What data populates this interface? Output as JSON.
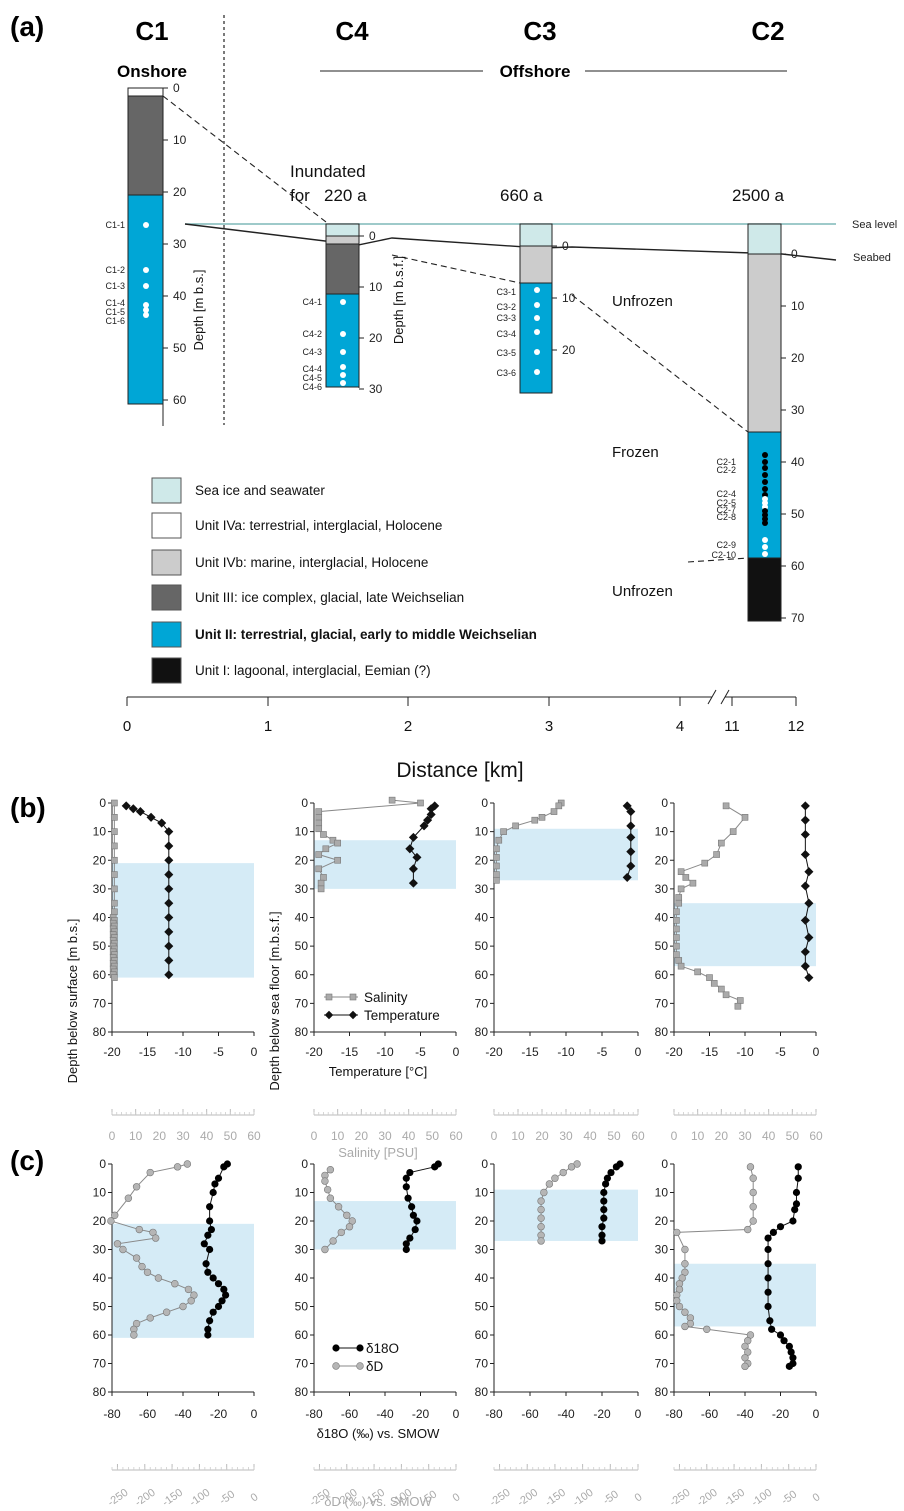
{
  "panel_labels": {
    "a": "(a)",
    "b": "(b)",
    "c": "(c)"
  },
  "colors": {
    "sea": "#cfe9e9",
    "unit_IVa": "#ffffff",
    "unit_IVb": "#cccccc",
    "unit_III": "#666666",
    "unit_II": "#00a6d6",
    "unit_I": "#111111",
    "unit_II_band": "#d5ebf6",
    "salinity": "#aaaaaa",
    "temperature": "#111111",
    "d18O": "#000000",
    "dD": "#b0b0b0"
  },
  "section": {
    "site_C1": "C1",
    "site_C4": "C4",
    "site_C3": "C3",
    "site_C2": "C2",
    "onshore": "Onshore",
    "offshore": "Offshore",
    "inundated_line1": "Inundated",
    "inundated_line2": "for",
    "age_C4": "220 a",
    "age_C3": "660 a",
    "age_C2": "2500 a",
    "sea_level": "Sea level",
    "seabed": "Seabed",
    "unfrozen_1": "Unfrozen",
    "frozen": "Frozen",
    "unfrozen_2": "Unfrozen",
    "depth_label_C1": "Depth [m b.s.]",
    "depth_label_C4": "Depth [m b.s.f.]",
    "distance_label": "Distance [km]",
    "distance_ticks": [
      "0",
      "1",
      "2",
      "3",
      "4",
      "11",
      "12"
    ],
    "depth_ticks_C1": [
      "0",
      "10",
      "20",
      "30",
      "40",
      "50",
      "60"
    ],
    "depth_ticks_C4": [
      "0",
      "10",
      "20",
      "30"
    ],
    "depth_ticks_C3": [
      "0",
      "10",
      "20"
    ],
    "depth_ticks_C2": [
      "0",
      "10",
      "20",
      "30",
      "40",
      "50",
      "60",
      "70"
    ],
    "samples_C1": [
      "C1-1",
      "C1-2",
      "C1-3",
      "C1-4",
      "C1-5",
      "C1-6"
    ],
    "samples_C4": [
      "C4-1",
      "C4-2",
      "C4-3",
      "C4-4",
      "C4-5",
      "C4-6"
    ],
    "samples_C3": [
      "C3-1",
      "C3-2",
      "C3-3",
      "C3-4",
      "C3-5",
      "C3-6"
    ],
    "samples_C2": [
      "C2-1",
      "C2-2",
      "C2-4",
      "C2-5",
      "C2-7",
      "C2-8",
      "C2-9",
      "C2-10"
    ],
    "legend": [
      {
        "label": "Sea ice and seawater",
        "color": "#cfe9e9"
      },
      {
        "label": "Unit IVa: terrestrial, interglacial, Holocene",
        "color": "#ffffff"
      },
      {
        "label": "Unit IVb: marine, interglacial, Holocene",
        "color": "#cccccc"
      },
      {
        "label": "Unit III: ice complex, glacial, late Weichselian",
        "color": "#666666"
      },
      {
        "label": "Unit II: terrestrial, glacial, early to middle Weichselian",
        "color": "#00a6d6"
      },
      {
        "label": "Unit I: lagoonal, interglacial, Eemian (?)",
        "color": "#111111"
      }
    ]
  },
  "profiles": {
    "ylabel_C1": "Depth below surface [m b.s.]",
    "ylabel_other": "Depth below sea floor [m.b.s.f.]",
    "y_ticks": [
      "0",
      "10",
      "20",
      "30",
      "40",
      "50",
      "60",
      "70",
      "80"
    ],
    "b_ticks": [
      "-20",
      "-15",
      "-10",
      "-5",
      "0"
    ],
    "b_sal_ticks": [
      "0",
      "10",
      "20",
      "30",
      "40",
      "50",
      "60"
    ],
    "c_ticks": [
      "-80",
      "-60",
      "-40",
      "-20",
      "0"
    ],
    "c_dD_ticks": [
      "-250",
      "-200",
      "-150",
      "-100",
      "-50",
      "0"
    ],
    "b_xlabel": "Temperature [°C]",
    "b_xlabel2": "Salinity [PSU]",
    "c_xlabel": "δ18O (‰) vs. SMOW",
    "c_xlabel2": "δD (‰) vs. SMOW",
    "legend_b": [
      "Salinity",
      "Temperature"
    ],
    "legend_c": [
      "δ18O",
      "δD"
    ]
  },
  "chart_data": [
    {
      "type": "line",
      "title": "",
      "panel": "(b) C1",
      "ylabel": "Depth below surface [m b.s.]",
      "xlabel": "Temperature [°C]",
      "xlabel2": "Salinity [PSU]",
      "xlim": [
        -20,
        0
      ],
      "xlim2": [
        0,
        60
      ],
      "ylim": [
        80,
        0
      ],
      "unit_II_band": [
        21,
        61
      ],
      "series": [
        {
          "name": "Temperature",
          "depth": [
            1,
            2,
            3,
            5,
            7,
            10,
            15,
            20,
            25,
            30,
            35,
            40,
            45,
            50,
            55,
            60
          ],
          "values": [
            -18,
            -17,
            -16,
            -14.5,
            -13,
            -12,
            -12,
            -12,
            -12,
            -12,
            -12,
            -12,
            -12,
            -12,
            -12,
            -12
          ]
        },
        {
          "name": "Salinity",
          "depth": [
            0,
            5,
            10,
            15,
            20,
            25,
            30,
            35,
            38,
            40,
            41,
            42,
            43,
            44,
            45,
            46,
            47,
            48,
            49,
            50,
            51,
            52,
            53,
            54,
            55,
            56,
            57,
            58,
            59,
            60,
            61
          ],
          "values": [
            1,
            1,
            1,
            1,
            1,
            1,
            1,
            1,
            1,
            0.5,
            1,
            0.5,
            1,
            0.5,
            1,
            0.5,
            1,
            0.5,
            1,
            0.5,
            1,
            0.5,
            1,
            0.5,
            1,
            0.5,
            1,
            0.5,
            1,
            0.5,
            1
          ]
        }
      ]
    },
    {
      "type": "line",
      "title": "",
      "panel": "(b) C4",
      "ylabel": "Depth below sea floor [m.b.s.f.]",
      "xlabel": "Temperature [°C]",
      "xlabel2": "Salinity [PSU]",
      "xlim": [
        -20,
        0
      ],
      "xlim2": [
        0,
        60
      ],
      "ylim": [
        80,
        0
      ],
      "unit_II_band": [
        13,
        30
      ],
      "series": [
        {
          "name": "Temperature",
          "depth": [
            1,
            2,
            4,
            6,
            8,
            12,
            16,
            19,
            23,
            28
          ],
          "values": [
            -3,
            -3.5,
            -3.5,
            -4,
            -4.5,
            -6,
            -6.5,
            -5.5,
            -6,
            -6
          ]
        },
        {
          "name": "Salinity",
          "depth": [
            -1,
            0,
            3,
            5,
            7,
            9,
            11,
            13,
            14,
            16,
            18,
            20,
            23,
            26,
            28,
            30
          ],
          "values": [
            33,
            45,
            2,
            2,
            2,
            2,
            4,
            8,
            10,
            5,
            2,
            10,
            2,
            4,
            3,
            3
          ]
        }
      ]
    },
    {
      "type": "line",
      "title": "",
      "panel": "(b) C3",
      "ylabel": "",
      "xlabel": "",
      "xlabel2": "",
      "xlim": [
        -20,
        0
      ],
      "xlim2": [
        0,
        60
      ],
      "ylim": [
        80,
        0
      ],
      "unit_II_band": [
        9,
        27
      ],
      "series": [
        {
          "name": "Temperature",
          "depth": [
            1,
            3,
            8,
            12,
            17,
            22,
            26
          ],
          "values": [
            -1.5,
            -1,
            -1,
            -1,
            -1,
            -1,
            -1.5
          ]
        },
        {
          "name": "Salinity",
          "depth": [
            0,
            1,
            3,
            5,
            6,
            8,
            10,
            13,
            16,
            19,
            22,
            25,
            27
          ],
          "values": [
            28,
            27,
            25,
            20,
            17,
            9,
            4,
            2,
            1,
            1,
            1,
            1,
            1
          ]
        }
      ]
    },
    {
      "type": "line",
      "title": "",
      "panel": "(b) C2",
      "ylabel": "",
      "xlabel": "",
      "xlabel2": "",
      "xlim": [
        -20,
        0
      ],
      "xlim2": [
        0,
        60
      ],
      "ylim": [
        80,
        0
      ],
      "unit_II_band": [
        35,
        57
      ],
      "series": [
        {
          "name": "Temperature",
          "depth": [
            1,
            6,
            11,
            18,
            24,
            29,
            35,
            41,
            47,
            52,
            57,
            61
          ],
          "values": [
            -1.5,
            -1.5,
            -1.5,
            -1.5,
            -1,
            -1.5,
            -1,
            -1.5,
            -1,
            -1.5,
            -1.5,
            -1
          ],
          "depth_note": ""
        },
        {
          "name": "Salinity",
          "depth": [
            1,
            5,
            10,
            14,
            18,
            21,
            24,
            26,
            28,
            30,
            33,
            35,
            38,
            41,
            44,
            47,
            50,
            53,
            55,
            57,
            59,
            61,
            63,
            65,
            67,
            69,
            71
          ],
          "values": [
            22,
            30,
            25,
            20,
            18,
            13,
            3,
            5,
            8,
            3,
            2,
            2,
            1,
            1,
            1,
            1,
            1,
            1,
            2,
            3,
            10,
            15,
            17,
            20,
            22,
            28,
            27
          ]
        }
      ]
    },
    {
      "type": "line",
      "title": "",
      "panel": "(c) C1",
      "ylabel": "Depth below surface [m b.s.]",
      "xlabel": "δ18O (‰) vs. SMOW",
      "xlabel2": "δD (‰) vs. SMOW",
      "xlim": [
        -80,
        0
      ],
      "xlim2": [
        -260,
        0
      ],
      "ylim": [
        80,
        0
      ],
      "unit_II_band": [
        21,
        61
      ],
      "series": [
        {
          "name": "δ18O",
          "depth": [
            0,
            1,
            5,
            7,
            10,
            15,
            20,
            23,
            25,
            28,
            30,
            35,
            38,
            40,
            42,
            44,
            46,
            48,
            50,
            52,
            55,
            58,
            60
          ],
          "values": [
            -15,
            -17,
            -20,
            -22,
            -23,
            -25,
            -25,
            -24,
            -26,
            -28,
            -25,
            -27,
            -26,
            -23,
            -20,
            -17,
            -16,
            -18,
            -20,
            -23,
            -25,
            -26,
            -26
          ]
        },
        {
          "name": "δD",
          "depth": [
            0,
            1,
            3,
            8,
            12,
            18,
            20,
            23,
            24,
            26,
            28,
            30,
            33,
            36,
            38,
            40,
            42,
            44,
            46,
            48,
            50,
            52,
            54,
            56,
            58,
            60
          ],
          "values": [
            -122,
            -140,
            -190,
            -215,
            -230,
            -255,
            -262,
            -210,
            -185,
            -180,
            -250,
            -240,
            -215,
            -205,
            -195,
            -175,
            -145,
            -120,
            -110,
            -115,
            -130,
            -160,
            -190,
            -215,
            -220,
            -220
          ]
        }
      ]
    },
    {
      "type": "line",
      "title": "",
      "panel": "(c) C4",
      "ylabel": "Depth below sea floor [m.b.s.f.]",
      "xlabel": "δ18O (‰) vs. SMOW",
      "xlabel2": "δD (‰) vs. SMOW",
      "xlim": [
        -80,
        0
      ],
      "xlim2": [
        -260,
        0
      ],
      "ylim": [
        80,
        0
      ],
      "unit_II_band": [
        13,
        30
      ],
      "series": [
        {
          "name": "δ18O",
          "depth": [
            0,
            1,
            3,
            5,
            8,
            12,
            15,
            18,
            20,
            23,
            26,
            28,
            30
          ],
          "values": [
            -10,
            -12,
            -26,
            -28,
            -28,
            -27,
            -25,
            -24,
            -22,
            -23,
            -26,
            -28,
            -28
          ]
        },
        {
          "name": "δD",
          "depth": [
            2,
            4,
            6,
            9,
            12,
            15,
            18,
            20,
            22,
            24,
            27,
            30
          ],
          "values": [
            -230,
            -240,
            -240,
            -235,
            -230,
            -215,
            -200,
            -190,
            -195,
            -210,
            -225,
            -240
          ]
        }
      ]
    },
    {
      "type": "line",
      "title": "",
      "panel": "(c) C3",
      "ylabel": "",
      "xlabel": "",
      "xlabel2": "",
      "xlim": [
        -80,
        0
      ],
      "xlim2": [
        -260,
        0
      ],
      "ylim": [
        80,
        0
      ],
      "unit_II_band": [
        9,
        27
      ],
      "series": [
        {
          "name": "δ18O",
          "depth": [
            0,
            1,
            3,
            5,
            7,
            10,
            13,
            16,
            19,
            22,
            25,
            27
          ],
          "values": [
            -10,
            -12,
            -15,
            -17,
            -18,
            -19,
            -19,
            -19,
            -19,
            -20,
            -20,
            -20
          ]
        },
        {
          "name": "δD",
          "depth": [
            0,
            1,
            3,
            5,
            7,
            10,
            13,
            16,
            19,
            22,
            25,
            27
          ],
          "values": [
            -110,
            -120,
            -135,
            -150,
            -160,
            -170,
            -175,
            -175,
            -175,
            -175,
            -175,
            -175
          ]
        }
      ]
    },
    {
      "type": "line",
      "title": "",
      "panel": "(c) C2",
      "ylabel": "",
      "xlabel": "",
      "xlabel2": "",
      "xlim": [
        -80,
        0
      ],
      "xlim2": [
        -260,
        0
      ],
      "ylim": [
        80,
        0
      ],
      "unit_II_band": [
        35,
        57
      ],
      "series": [
        {
          "name": "δ18O",
          "depth": [
            1,
            5,
            10,
            14,
            16,
            20,
            22,
            24,
            26,
            30,
            35,
            40,
            45,
            50,
            55,
            58,
            60,
            62,
            64,
            66,
            68,
            70,
            71
          ],
          "values": [
            -10,
            -10,
            -11,
            -11,
            -12,
            -13,
            -20,
            -24,
            -27,
            -27,
            -27,
            -27,
            -27,
            -27,
            -26,
            -25,
            -20,
            -18,
            -15,
            -14,
            -13,
            -13,
            -15
          ]
        },
        {
          "name": "δD",
          "depth": [
            1,
            5,
            10,
            15,
            20,
            23,
            24,
            30,
            35,
            38,
            40,
            42,
            44,
            46,
            48,
            50,
            52,
            54,
            56,
            57,
            58,
            60,
            62,
            64,
            66,
            68,
            70,
            71
          ],
          "values": [
            -120,
            -115,
            -115,
            -115,
            -115,
            -125,
            -255,
            -240,
            -240,
            -240,
            -245,
            -250,
            -250,
            -255,
            -255,
            -250,
            -240,
            -230,
            -230,
            -240,
            -200,
            -120,
            -125,
            -130,
            -125,
            -130,
            -125,
            -130
          ]
        }
      ]
    }
  ]
}
